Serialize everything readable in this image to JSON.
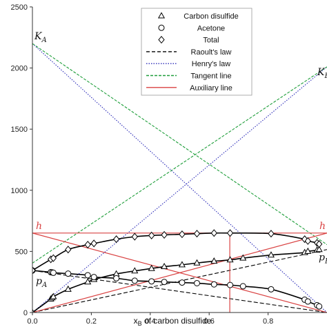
{
  "chart_data": {
    "type": "line",
    "xlabel": "x",
    "xlabel_sub": "B",
    "xlabel_rest": " of carbon disulfide",
    "ylabel": "",
    "xlim": [
      0,
      1
    ],
    "ylim": [
      0,
      2500
    ],
    "x_ticks": [
      0.0,
      0.2,
      0.4,
      0.6,
      0.8
    ],
    "y_ticks": [
      0,
      500,
      1000,
      1500,
      2000,
      2500
    ],
    "x_tick_labels": [
      "0.0",
      "0.2",
      "0.4",
      "0.6",
      "0.8"
    ],
    "y_tick_labels": [
      "0",
      "500",
      "1000",
      "1500",
      "2000",
      "2500"
    ],
    "legend": {
      "placement": "top-center",
      "entries": [
        {
          "label": "Carbon disulfide",
          "style": "triangle"
        },
        {
          "label": "Acetone",
          "style": "circle"
        },
        {
          "label": "Total",
          "style": "diamond"
        },
        {
          "label": "Raoult's law",
          "style": "dashed-black"
        },
        {
          "label": "Henry's law",
          "style": "dotted-blue"
        },
        {
          "label": "Tangent line",
          "style": "dashed-green"
        },
        {
          "label": "Auxiliary line",
          "style": "solid-red"
        }
      ]
    },
    "colors": {
      "henry": "#2a2ab8",
      "tangent": "#1e9e3a",
      "auxiliary": "#d94040",
      "fit": "#000000"
    },
    "series": [
      {
        "name": "Carbon disulfide",
        "marker": "triangle",
        "x": [
          0.0,
          0.0624,
          0.067,
          0.0711,
          0.1212,
          0.1879,
          0.2088,
          0.2848,
          0.3473,
          0.4044,
          0.4475,
          0.508,
          0.5585,
          0.6166,
          0.6711,
          0.7149,
          0.8102,
          0.9242,
          0.9351,
          0.9662,
          0.9734
        ],
        "y": [
          0,
          110,
          120,
          130,
          190,
          250,
          270,
          315,
          340,
          360,
          375,
          390,
          405,
          420,
          430,
          445,
          470,
          490,
          500,
          510,
          515
        ]
      },
      {
        "name": "Acetone",
        "marker": "circle",
        "x": [
          0.0,
          0.0624,
          0.067,
          0.0711,
          0.1212,
          0.1879,
          0.2088,
          0.2848,
          0.3473,
          0.4044,
          0.4475,
          0.508,
          0.5585,
          0.6166,
          0.6711,
          0.7149,
          0.8102,
          0.9242,
          0.9351,
          0.9662,
          0.9734
        ],
        "y": [
          344,
          330,
          328,
          325,
          318,
          305,
          290,
          280,
          260,
          255,
          250,
          245,
          240,
          230,
          225,
          215,
          190,
          105,
          90,
          60,
          50
        ]
      },
      {
        "name": "Total",
        "marker": "diamond",
        "x": [
          0.0,
          0.0624,
          0.0711,
          0.1212,
          0.1879,
          0.2088,
          0.2848,
          0.3473,
          0.4044,
          0.4475,
          0.508,
          0.5585,
          0.6166,
          0.6711,
          0.8102,
          0.9242,
          0.9351,
          0.9662,
          0.9734
        ],
        "y": [
          344,
          435,
          445,
          515,
          555,
          565,
          600,
          620,
          630,
          635,
          640,
          645,
          650,
          650,
          645,
          600,
          585,
          570,
          560
        ]
      }
    ],
    "annotations": [
      {
        "text": "K",
        "sub": "A"
      },
      {
        "text": "K",
        "sub": "B"
      },
      {
        "text": "h",
        "sub": ""
      },
      {
        "text": "h",
        "sub": ""
      },
      {
        "text": "p",
        "sub": "A"
      },
      {
        "text": "p",
        "sub": "B"
      }
    ]
  }
}
